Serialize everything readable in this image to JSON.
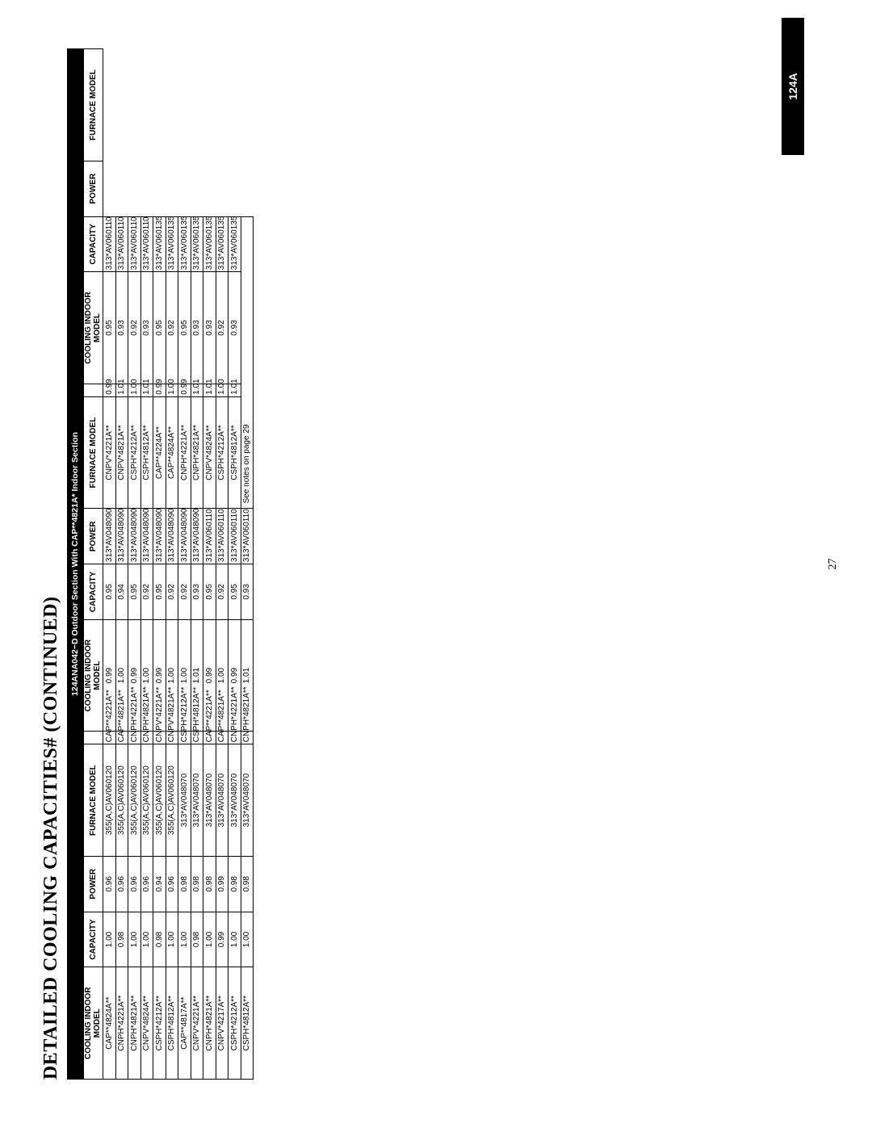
{
  "page": {
    "title": "DETAILED COOLING CAPACITIES# (CONTINUED)",
    "subtitle": "124ANA042−D Outdoor Section With CAP**4821A* Indoor Section",
    "page_number": "27",
    "side_tab": "124A",
    "notes": "See notes on page 29"
  },
  "headers": {
    "cooling_indoor_model": "COOLING INDOOR MODEL",
    "cooling_indoor_model_l1": "COOLING INDOOR",
    "cooling_indoor_model_l2": "MODEL",
    "capacity": "CAPACITY",
    "power": "POWER",
    "furnace_model": "FURNACE MODEL"
  },
  "columns": [
    "cooling_indoor_model",
    "capacity",
    "power",
    "furnace_model"
  ],
  "rows": [
    [
      [
        "CAP**4824A**",
        "1.00",
        "0.96",
        "355(A,C)AV060120"
      ],
      [
        "CAP**4221A**",
        "0.99",
        "0.95",
        "313*AV048090"
      ],
      [
        "CNPV*4221A**",
        "0.99",
        "0.95",
        "313*AV060110"
      ]
    ],
    [
      [
        "CNPH*4221A**",
        "0.98",
        "0.96",
        "355(A,C)AV060120"
      ],
      [
        "CAP**4821A**",
        "1.00",
        "0.94",
        "313*AV048090"
      ],
      [
        "CNPV*4821A**",
        "1.01",
        "0.93",
        "313*AV060110"
      ]
    ],
    [
      [
        "CNPH*4821A**",
        "1.00",
        "0.96",
        "355(A,C)AV060120"
      ],
      [
        "CNPH*4221A**",
        "0.99",
        "0.95",
        "313*AV048090"
      ],
      [
        "CSPH*4212A**",
        "1.00",
        "0.92",
        "313*AV060110"
      ]
    ],
    [
      [
        "CNPV*4824A**",
        "1.00",
        "0.96",
        "355(A,C)AV060120"
      ],
      [
        "CNPH*4821A**",
        "1.00",
        "0.92",
        "313*AV048090"
      ],
      [
        "CSPH*4812A**",
        "1.01",
        "0.93",
        "313*AV060110"
      ]
    ],
    [
      [
        "CSPH*4212A**",
        "0.98",
        "0.94",
        "355(A,C)AV060120"
      ],
      [
        "CNPV*4221A**",
        "0.99",
        "0.95",
        "313*AV048090"
      ],
      [
        "CAP**4224A**",
        "0.99",
        "0.95",
        "313*AV060135"
      ]
    ],
    [
      [
        "CSPH*4812A**",
        "1.00",
        "0.96",
        "355(A,C)AV060120"
      ],
      [
        "CNPV*4821A**",
        "1.00",
        "0.92",
        "313*AV048090"
      ],
      [
        "CAP**4824A**",
        "1.00",
        "0.92",
        "313*AV060135"
      ]
    ],
    [
      [
        "CAP**4817A**",
        "1.00",
        "0.98",
        "313*AV048070"
      ],
      [
        "CSPH*4212A**",
        "1.00",
        "0.92",
        "313*AV048090"
      ],
      [
        "CNPH*4221A**",
        "0.99",
        "0.95",
        "313*AV060135"
      ]
    ],
    [
      [
        "CNPV*4221A**",
        "0.98",
        "0.98",
        "313*AV048070"
      ],
      [
        "CSPH*4812A**",
        "1.01",
        "0.93",
        "313*AV048090"
      ],
      [
        "CNPH*4821A**",
        "1.01",
        "0.93",
        "313*AV060135"
      ]
    ],
    [
      [
        "CNPH*4821A**",
        "1.00",
        "0.98",
        "313*AV048070"
      ],
      [
        "CAP**4221A**",
        "0.99",
        "0.95",
        "313*AV060110"
      ],
      [
        "CNPV*4824A**",
        "1.01",
        "0.93",
        "313*AV060135"
      ]
    ],
    [
      [
        "CNPV*4217A**",
        "0.99",
        "0.99",
        "313*AV048070"
      ],
      [
        "CAP**4821A**",
        "1.00",
        "0.92",
        "313*AV060110"
      ],
      [
        "CSPH*4212A**",
        "1.00",
        "0.92",
        "313*AV060135"
      ]
    ],
    [
      [
        "CSPH*4212A**",
        "1.00",
        "0.98",
        "313*AV048070"
      ],
      [
        "CNPH*4221A**",
        "0.99",
        "0.95",
        "313*AV060110"
      ],
      [
        "CSPH*4812A**",
        "1.01",
        "0.93",
        "313*AV060135"
      ]
    ],
    [
      [
        "CSPH*4812A**",
        "1.00",
        "0.98",
        "313*AV048070"
      ],
      [
        "CNPH*4821A**",
        "1.01",
        "0.93",
        "313*AV060110"
      ],
      null
    ]
  ],
  "style": {
    "font_family": "Arial, Helvetica, sans-serif",
    "title_font_family": "Times New Roman, Times, serif",
    "title_font_size_pt": 18,
    "cell_font_size_pt": 7.5,
    "header_bg": "#000000",
    "header_fg": "#ffffff",
    "cell_bg": "#ffffff",
    "border_color": "#000000",
    "side_tab_bg": "#000000",
    "side_tab_fg": "#ffffff"
  }
}
